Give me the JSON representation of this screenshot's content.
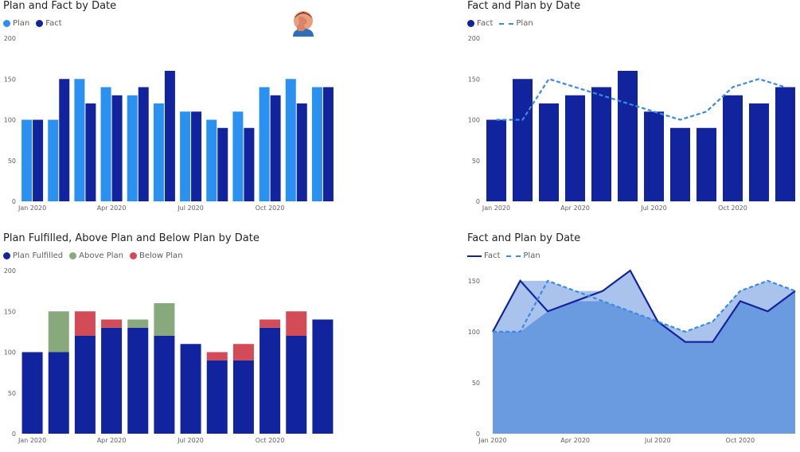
{
  "colors": {
    "plan": "#2b91f0",
    "fact": "#12239e",
    "plan_fulfilled": "#12239e",
    "above_plan": "#88a97c",
    "below_plan": "#d24b56",
    "area_fill": "#6a9ae0",
    "area_band": "#a9c3ec",
    "plan_line": "#3a8ae6"
  },
  "decor": {
    "icon": "facepalm-emoji-icon"
  },
  "chart_data": [
    {
      "type": "bar",
      "title": "Plan and Fact by Date",
      "legend": [
        "Plan",
        "Fact"
      ],
      "xticks": [
        "Jan 2020",
        "Apr 2020",
        "Jul 2020",
        "Oct 2020"
      ],
      "yticks": [
        "0",
        "50",
        "100",
        "150",
        "200"
      ],
      "ylim": [
        0,
        200
      ],
      "categories": [
        "Jan 2020",
        "Feb 2020",
        "Mar 2020",
        "Apr 2020",
        "May 2020",
        "Jun 2020",
        "Jul 2020",
        "Aug 2020",
        "Sep 2020",
        "Oct 2020",
        "Nov 2020",
        "Dec 2020"
      ],
      "series": [
        {
          "name": "Plan",
          "values": [
            100,
            100,
            150,
            140,
            130,
            120,
            110,
            100,
            110,
            140,
            150,
            140
          ]
        },
        {
          "name": "Fact",
          "values": [
            100,
            150,
            120,
            130,
            140,
            160,
            110,
            90,
            90,
            130,
            120,
            140
          ]
        }
      ]
    },
    {
      "type": "bar",
      "title": "Fact and Plan by Date",
      "legend": [
        "Fact",
        "Plan"
      ],
      "xticks": [
        "Jan 2020",
        "Apr 2020",
        "Jul 2020",
        "Oct 2020"
      ],
      "yticks": [
        "0",
        "50",
        "100",
        "150",
        "200"
      ],
      "ylim": [
        0,
        200
      ],
      "categories": [
        "Jan 2020",
        "Feb 2020",
        "Mar 2020",
        "Apr 2020",
        "May 2020",
        "Jun 2020",
        "Jul 2020",
        "Aug 2020",
        "Sep 2020",
        "Oct 2020",
        "Nov 2020",
        "Dec 2020"
      ],
      "series": [
        {
          "name": "Fact",
          "type": "bar",
          "values": [
            100,
            150,
            120,
            130,
            140,
            160,
            110,
            90,
            90,
            130,
            120,
            140
          ]
        },
        {
          "name": "Plan",
          "type": "line",
          "style": "dashed",
          "values": [
            100,
            100,
            150,
            140,
            130,
            120,
            110,
            100,
            110,
            140,
            150,
            140
          ]
        }
      ]
    },
    {
      "type": "bar",
      "stacked": true,
      "title": "Plan Fulfilled, Above Plan and Below Plan by Date",
      "legend": [
        "Plan Fulfilled",
        "Above Plan",
        "Below Plan"
      ],
      "xticks": [
        "Jan 2020",
        "Apr 2020",
        "Jul 2020",
        "Oct 2020"
      ],
      "yticks": [
        "0",
        "50",
        "100",
        "150",
        "200"
      ],
      "ylim": [
        0,
        200
      ],
      "categories": [
        "Jan 2020",
        "Feb 2020",
        "Mar 2020",
        "Apr 2020",
        "May 2020",
        "Jun 2020",
        "Jul 2020",
        "Aug 2020",
        "Sep 2020",
        "Oct 2020",
        "Nov 2020",
        "Dec 2020"
      ],
      "series": [
        {
          "name": "Plan Fulfilled",
          "values": [
            100,
            100,
            120,
            130,
            130,
            120,
            110,
            90,
            90,
            130,
            120,
            140
          ]
        },
        {
          "name": "Above Plan",
          "values": [
            0,
            50,
            0,
            0,
            10,
            40,
            0,
            0,
            0,
            0,
            0,
            0
          ]
        },
        {
          "name": "Below Plan",
          "values": [
            0,
            0,
            30,
            10,
            0,
            0,
            0,
            10,
            20,
            10,
            30,
            0
          ]
        }
      ]
    },
    {
      "type": "area",
      "title": "Fact and Plan by Date",
      "legend": [
        "Fact",
        "Plan"
      ],
      "xticks": [
        "Jan 2020",
        "Apr 2020",
        "Jul 2020",
        "Oct 2020"
      ],
      "yticks": [
        "0",
        "50",
        "100",
        "150"
      ],
      "ylim": [
        0,
        160
      ],
      "categories": [
        "Jan 2020",
        "Feb 2020",
        "Mar 2020",
        "Apr 2020",
        "May 2020",
        "Jun 2020",
        "Jul 2020",
        "Aug 2020",
        "Sep 2020",
        "Oct 2020",
        "Nov 2020",
        "Dec 2020"
      ],
      "series": [
        {
          "name": "Fact",
          "style": "solid",
          "values": [
            100,
            150,
            120,
            130,
            140,
            160,
            110,
            90,
            90,
            130,
            120,
            140
          ]
        },
        {
          "name": "Plan",
          "style": "dashed",
          "values": [
            100,
            100,
            150,
            140,
            130,
            120,
            110,
            100,
            110,
            140,
            150,
            140
          ]
        }
      ]
    }
  ]
}
